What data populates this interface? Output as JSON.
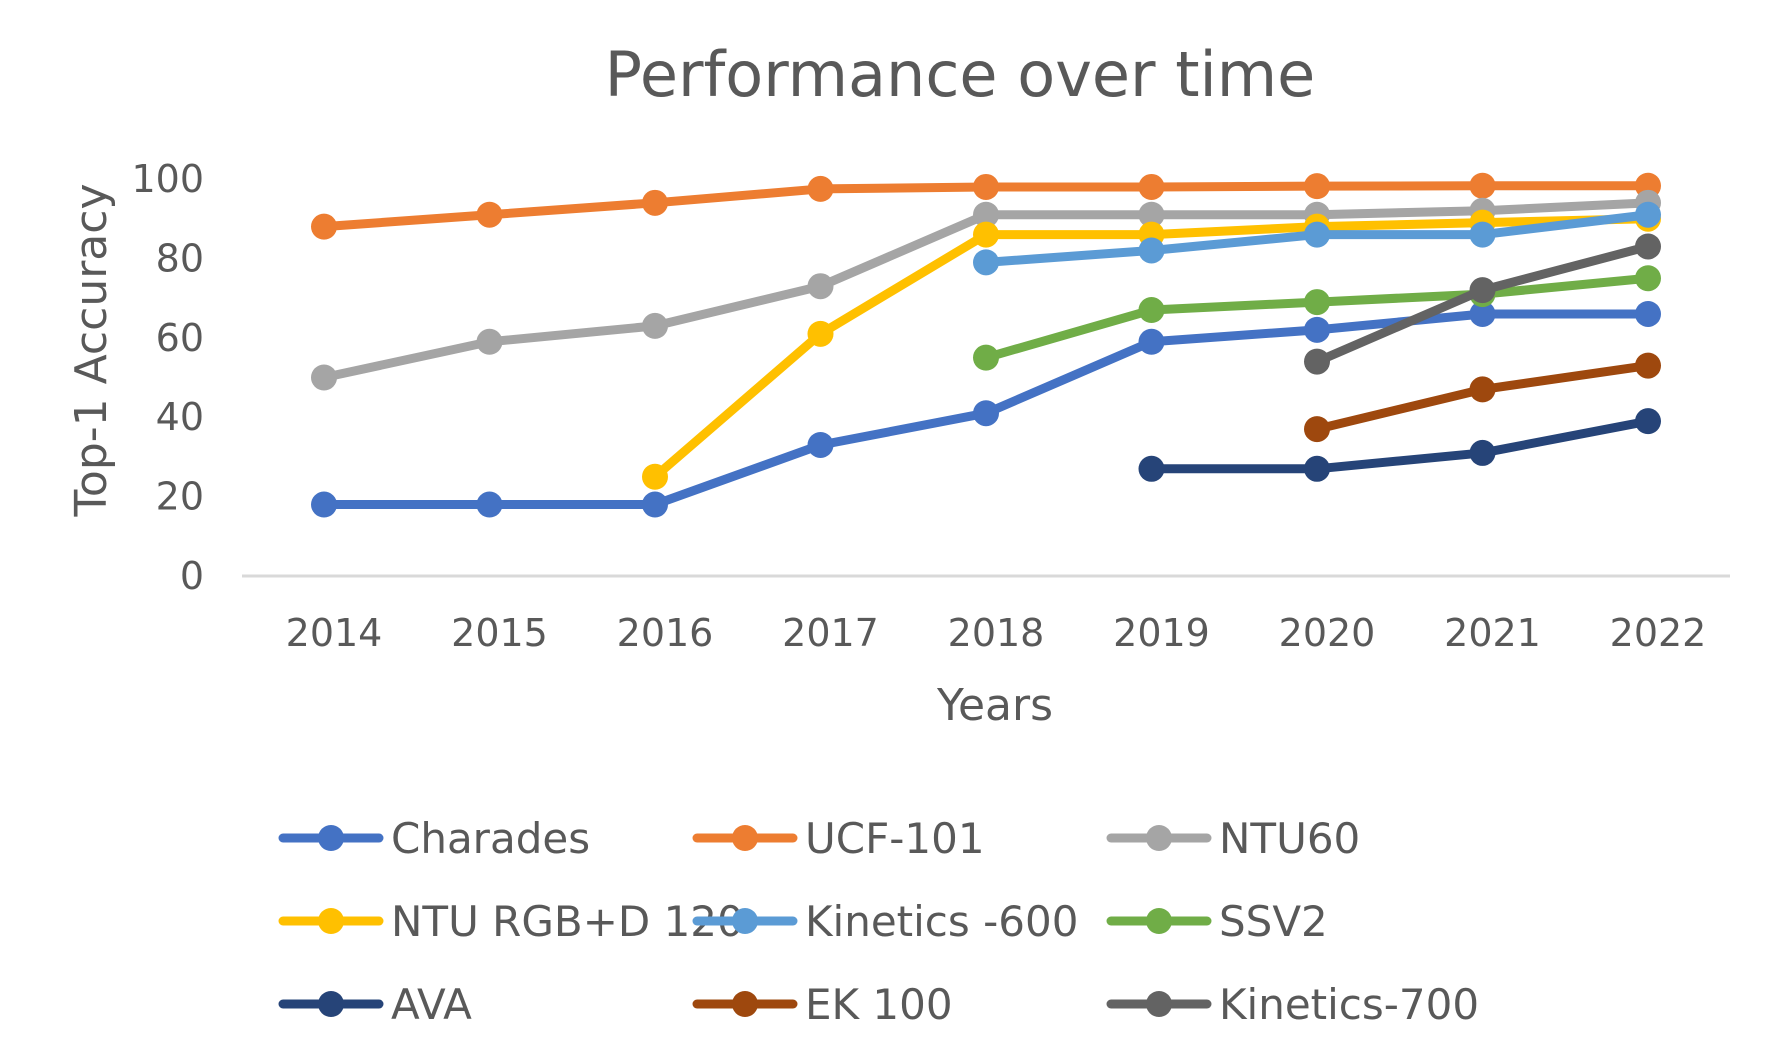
{
  "chart_data": {
    "type": "line",
    "title": "Performance over time",
    "xlabel": "Years",
    "ylabel": "Top-1 Accuracy",
    "categories": [
      "2014",
      "2015",
      "2016",
      "2017",
      "2018",
      "2019",
      "2020",
      "2021",
      "2022"
    ],
    "yticks": [
      "0",
      "20",
      "40",
      "60",
      "80",
      "100"
    ],
    "ylim": [
      0,
      100
    ],
    "grid": false,
    "legend_position": "bottom",
    "series": [
      {
        "name": "Charades",
        "color": "#4472C4",
        "values": [
          18,
          18,
          18,
          33,
          41,
          59,
          62,
          66,
          66
        ]
      },
      {
        "name": "UCF-101",
        "color": "#ED7D31",
        "values": [
          88,
          91,
          94,
          97.5,
          98,
          98,
          98.2,
          98.3,
          98.3
        ]
      },
      {
        "name": "NTU60",
        "color": "#A5A5A5",
        "values": [
          50,
          59,
          63,
          73,
          91,
          91,
          91,
          92,
          94
        ]
      },
      {
        "name": "NTU RGB+D 120",
        "color": "#FFC000",
        "values": [
          null,
          null,
          25,
          61,
          86,
          86,
          88,
          89,
          90
        ]
      },
      {
        "name": "Kinetics -600",
        "color": "#5B9BD5",
        "values": [
          null,
          null,
          null,
          null,
          79,
          82,
          86,
          86,
          91
        ]
      },
      {
        "name": "SSV2",
        "color": "#70AD47",
        "values": [
          null,
          null,
          null,
          null,
          55,
          67,
          69,
          71,
          75
        ]
      },
      {
        "name": "AVA",
        "color": "#264478",
        "values": [
          null,
          null,
          null,
          null,
          null,
          27,
          27,
          31,
          39
        ]
      },
      {
        "name": "EK 100",
        "color": "#9E480E",
        "values": [
          null,
          null,
          null,
          null,
          null,
          null,
          37,
          47,
          53
        ]
      },
      {
        "name": "Kinetics-700",
        "color": "#636363",
        "values": [
          null,
          null,
          null,
          null,
          null,
          null,
          54,
          72,
          83
        ]
      }
    ]
  }
}
